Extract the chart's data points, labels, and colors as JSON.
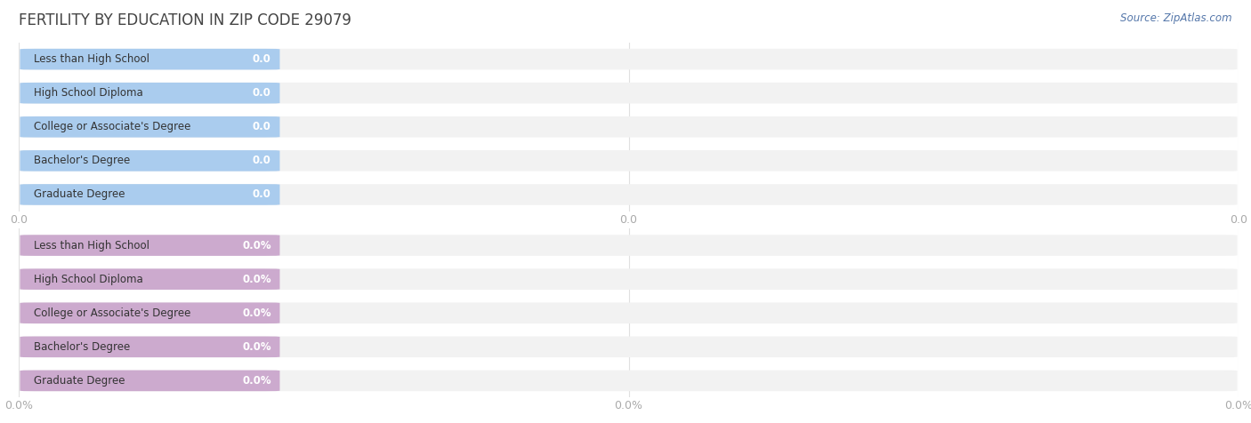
{
  "title": "FERTILITY BY EDUCATION IN ZIP CODE 29079",
  "source_text": "Source: ZipAtlas.com",
  "categories": [
    "Less than High School",
    "High School Diploma",
    "College or Associate's Degree",
    "Bachelor's Degree",
    "Graduate Degree"
  ],
  "values_top": [
    0.0,
    0.0,
    0.0,
    0.0,
    0.0
  ],
  "values_bottom": [
    0.0,
    0.0,
    0.0,
    0.0,
    0.0
  ],
  "bar_color_top": "#aaccee",
  "bar_color_bottom": "#ccaace",
  "bar_bg_color": "#f2f2f2",
  "title_color": "#444444",
  "tick_color": "#aaaaaa",
  "source_color": "#5577aa",
  "background_color": "#ffffff",
  "figsize": [
    14.06,
    4.76
  ],
  "dpi": 100
}
